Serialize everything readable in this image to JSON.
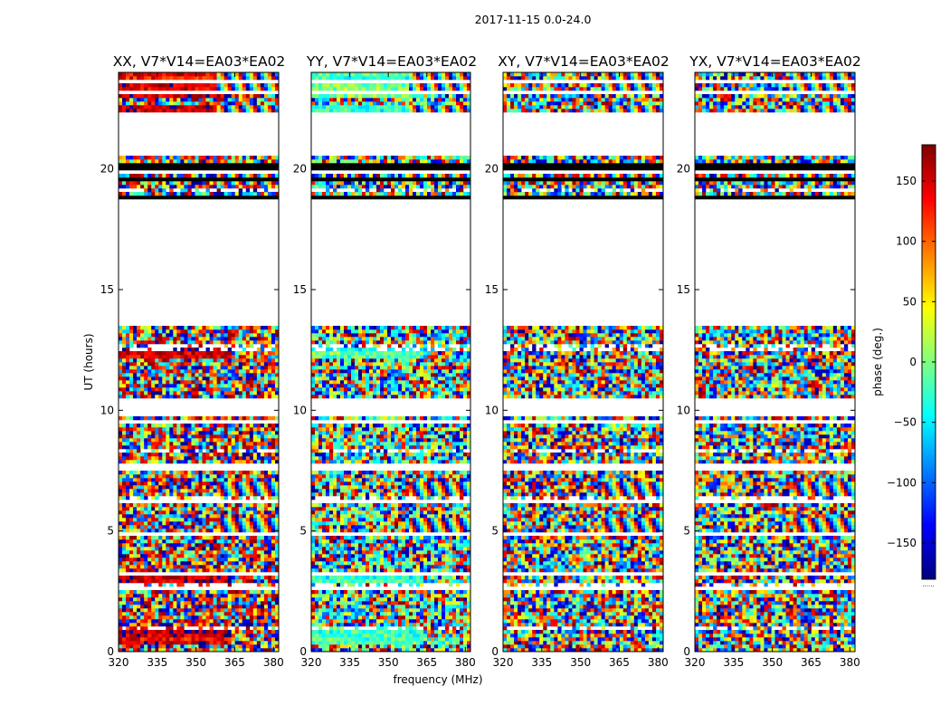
{
  "figure": {
    "suptitle": "2017-11-15 0.0-24.0",
    "xlabel": "frequency (MHz)",
    "ylabel": "UT (hours)",
    "colorbar_label": "phase (deg.)",
    "colorbar_footer": "......"
  },
  "chart_data": {
    "type": "heatmap",
    "title": "2017-11-15 0.0-24.0",
    "xlabel": "frequency (MHz)",
    "ylabel": "UT (hours)",
    "xlim": [
      320,
      382
    ],
    "ylim": [
      0,
      24
    ],
    "xticks": [
      320,
      335,
      350,
      365,
      380
    ],
    "yticks": [
      0,
      5,
      10,
      15,
      20
    ],
    "colormap": "jet",
    "colorbar": {
      "label": "phase (deg.)",
      "range": [
        -180,
        180
      ],
      "ticks": [
        -150,
        -100,
        -50,
        0,
        50,
        100,
        150
      ],
      "tick_labels": [
        "−150",
        "−100",
        "−50",
        "0",
        "50",
        "100",
        "150"
      ]
    },
    "panels": [
      {
        "title": "XX, V7*V14=EA03*EA02",
        "polarization": "XX",
        "bias_deg": 150,
        "coherence": 0.55
      },
      {
        "title": "YY, V7*V14=EA03*EA02",
        "polarization": "YY",
        "bias_deg": -20,
        "coherence": 0.55
      },
      {
        "title": "XY, V7*V14=EA03*EA02",
        "polarization": "XY",
        "bias_deg": 0,
        "coherence": 0.0
      },
      {
        "title": "YX, V7*V14=EA03*EA02",
        "polarization": "YX",
        "bias_deg": 0,
        "coherence": 0.0
      }
    ],
    "flagged_ut_ranges": [
      [
        0.9,
        0.95
      ],
      [
        1.5,
        1.55
      ],
      [
        2.6,
        2.75
      ],
      [
        3.2,
        3.25
      ],
      [
        3.7,
        3.75
      ],
      [
        4.2,
        4.25
      ],
      [
        4.8,
        4.95
      ],
      [
        5.5,
        5.55
      ],
      [
        6.2,
        6.35
      ],
      [
        6.9,
        6.95
      ],
      [
        7.5,
        7.6
      ],
      [
        7.7,
        7.85
      ],
      [
        8.25,
        8.3
      ],
      [
        9.5,
        9.65
      ],
      [
        9.8,
        10.45
      ],
      [
        12.55,
        12.6
      ],
      [
        13.0,
        13.05
      ],
      [
        13.5,
        18.75
      ],
      [
        19.75,
        19.95
      ],
      [
        20.5,
        22.3
      ],
      [
        22.6,
        22.7
      ],
      [
        23.05,
        23.3
      ],
      [
        23.55,
        23.7
      ]
    ],
    "black_ut_ranges": [
      [
        18.8,
        18.95
      ],
      [
        19.55,
        19.7
      ],
      [
        19.95,
        20.3
      ]
    ],
    "sparse_ut_rows": [
      1.0,
      2.8,
      6.35,
      8.3,
      10.45,
      12.6,
      19.1,
      20.95,
      22.3
    ],
    "coherent_ut_bands": [
      [
        0.3,
        1.1
      ],
      [
        2.8,
        3.3
      ],
      [
        12.2,
        12.6
      ],
      [
        22.1,
        22.6
      ],
      [
        23.0,
        24.0
      ]
    ],
    "fringe_ut_bands": [
      [
        4.9,
        5.6
      ],
      [
        6.5,
        7.0
      ],
      [
        19.3,
        19.8
      ],
      [
        22.0,
        22.6
      ],
      [
        23.3,
        24.0
      ]
    ]
  }
}
